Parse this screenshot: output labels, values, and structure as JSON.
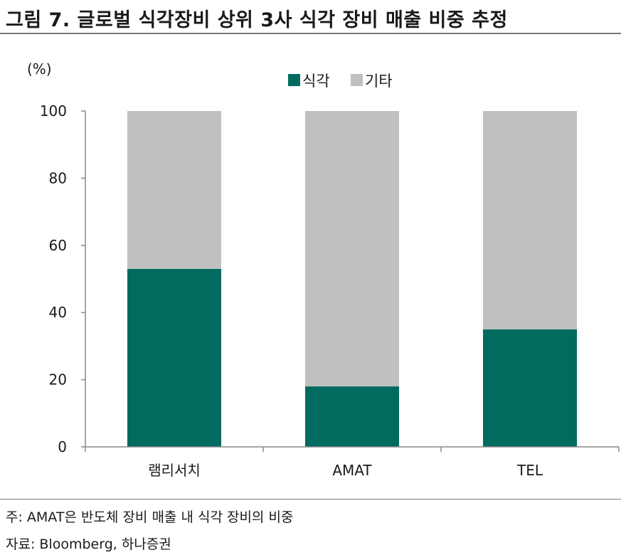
{
  "figure": {
    "title": "그림 7. 글로벌 식각장비 상위 3사 식각 장비 매출 비중 추정",
    "note": "주: AMAT은 반도체 장비 매출 내 식각 장비의 비중",
    "source": "자료: Bloomberg, 하나증권"
  },
  "chart_data": {
    "type": "bar",
    "stacked": true,
    "categories": [
      "램리서치",
      "AMAT",
      "TEL"
    ],
    "series": [
      {
        "name": "식각",
        "values": [
          53,
          18,
          35
        ],
        "color": "#006b5e"
      },
      {
        "name": "기타",
        "values": [
          47,
          82,
          65
        ],
        "color": "#c0c0c0"
      }
    ],
    "ylabel": "(%)",
    "ylim": [
      0,
      100
    ],
    "yticks": [
      "0",
      "20",
      "40",
      "60",
      "80",
      "100"
    ],
    "legend_position": "top-center",
    "grid": false
  }
}
